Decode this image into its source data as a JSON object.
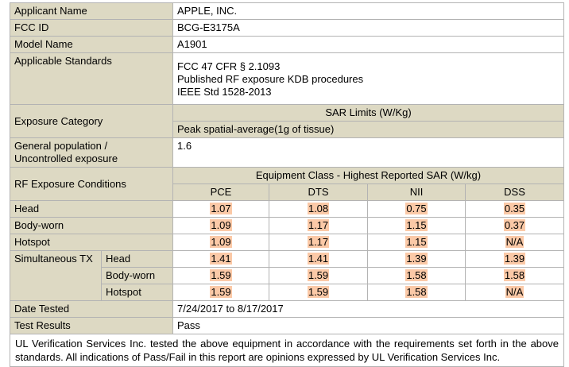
{
  "rows": {
    "applicant": {
      "label": "Applicant Name",
      "value": "APPLE, INC."
    },
    "fcc_id": {
      "label": "FCC ID",
      "value": "BCG-E3175A"
    },
    "model": {
      "label": "Model Name",
      "value": "A1901"
    },
    "standards": {
      "label": "Applicable Standards",
      "lines": [
        "FCC 47 CFR § 2.1093",
        "Published RF exposure KDB procedures",
        "IEEE Std 1528-2013"
      ]
    },
    "exposure": {
      "label": "Exposure Category",
      "sar_limits": "SAR Limits (W/Kg)",
      "peak": "Peak spatial-average(1g of tissue)"
    },
    "general": {
      "label_1": "General population /",
      "label_2": "Uncontrolled exposure",
      "value": "1.6"
    },
    "rf": {
      "label": "RF Exposure Conditions",
      "equipment_class": "Equipment Class - Highest Reported SAR (W/kg)",
      "columns": [
        "PCE",
        "DTS",
        "NII",
        "DSS"
      ]
    },
    "sar_rows": [
      {
        "label": "Head",
        "values": [
          "1.07",
          "1.08",
          "0.75",
          "0.35"
        ]
      },
      {
        "label": "Body-worn",
        "values": [
          "1.09",
          "1.17",
          "1.15",
          "0.37"
        ]
      },
      {
        "label": "Hotspot",
        "values": [
          "1.09",
          "1.17",
          "1.15",
          "N/A"
        ]
      }
    ],
    "simultaneous": {
      "label": "Simultaneous TX",
      "rows": [
        {
          "label": "Head",
          "values": [
            "1.41",
            "1.41",
            "1.39",
            "1.39"
          ]
        },
        {
          "label": "Body-worn",
          "values": [
            "1.59",
            "1.59",
            "1.58",
            "1.58"
          ]
        },
        {
          "label": "Hotspot",
          "values": [
            "1.59",
            "1.59",
            "1.58",
            "N/A"
          ]
        }
      ]
    },
    "date": {
      "label": "Date Tested",
      "value": "7/24/2017 to 8/17/2017"
    },
    "results": {
      "label": "Test Results",
      "value": "Pass"
    }
  },
  "note": "UL Verification Services Inc. tested the above equipment in accordance with the requirements set forth in the above standards. All indications of Pass/Fail in this report are opinions expressed by UL Verification Services Inc.",
  "colors": {
    "label_bg": "#ddd9c3",
    "highlight": "#fbc9a7",
    "border": "#b3b3b3"
  }
}
